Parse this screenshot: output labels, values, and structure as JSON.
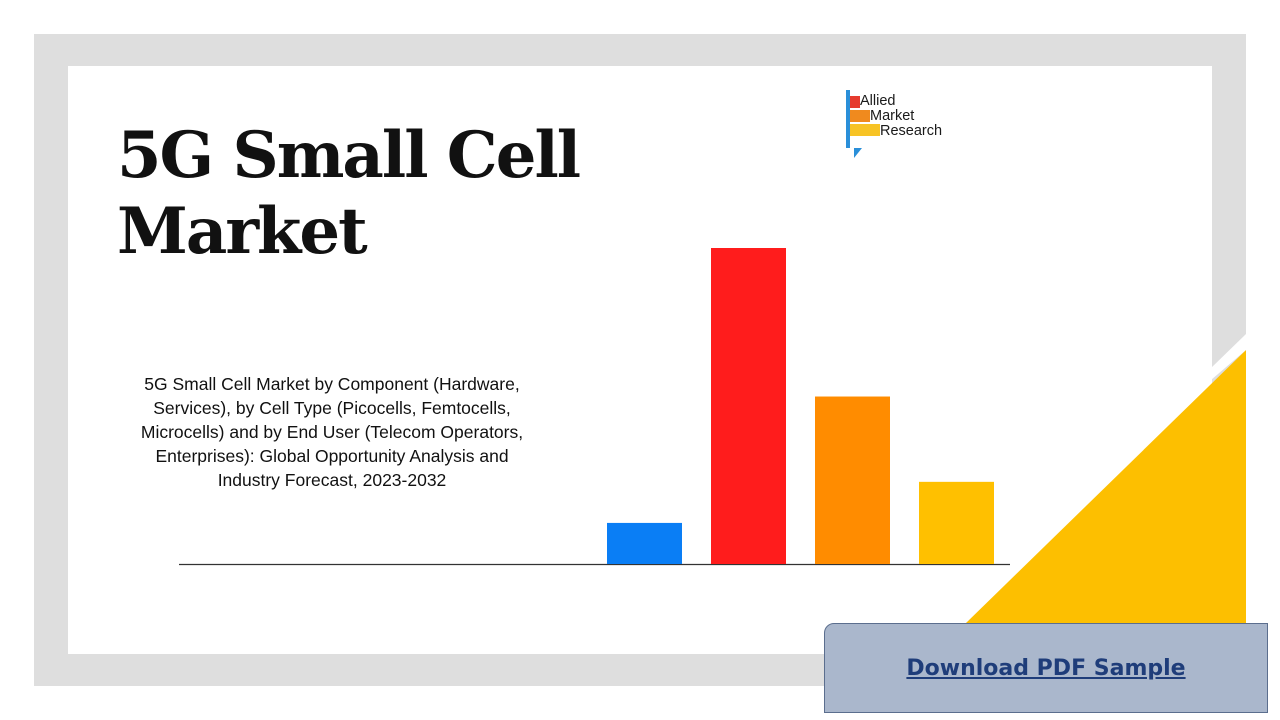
{
  "page": {
    "title_line1": "5G Small Cell",
    "title_line2": "Market",
    "subtitle": "5G Small Cell Market by Component (Hardware, Services), by Cell Type (Picocells, Femtocells, Microcells) and by End User (Telecom Operators, Enterprises): Global Opportunity Analysis and Industry Forecast, 2023-2032"
  },
  "logo": {
    "line1": "Allied",
    "line2": "Market",
    "line3": "Research",
    "colors": {
      "red": "#e63b2e",
      "orange": "#f08a1e",
      "yellow": "#f7c325",
      "blue": "#2a8fd9"
    }
  },
  "chart_data": {
    "type": "bar",
    "values": [
      13,
      100,
      53,
      26
    ],
    "colors": [
      "#0a7ef5",
      "#ff1c1c",
      "#ff8c00",
      "#ffc000"
    ],
    "ylim": [
      0,
      100
    ]
  },
  "decoration": {
    "triangle_color": "#fdbf00"
  },
  "download": {
    "label": "Download PDF Sample"
  }
}
